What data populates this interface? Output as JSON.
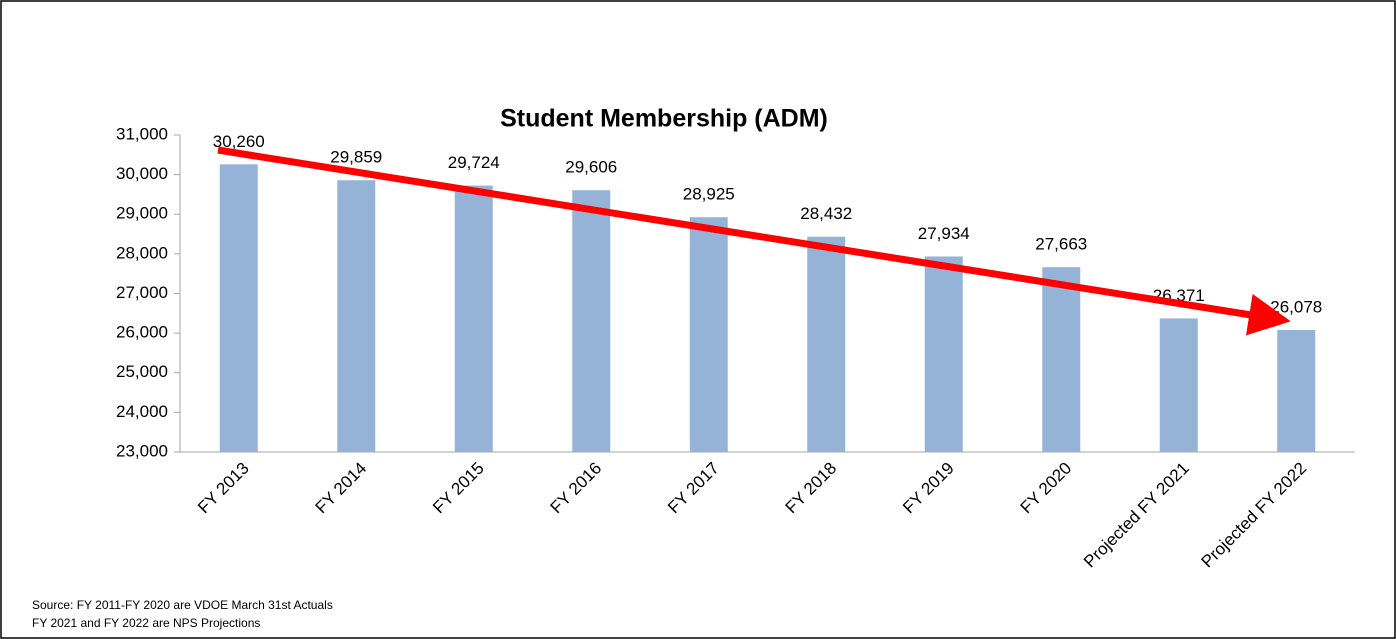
{
  "chart_data": {
    "type": "bar",
    "title": "Student Membership (ADM)",
    "categories": [
      "FY 2013",
      "FY 2014",
      "FY 2015",
      "FY 2016",
      "FY 2017",
      "FY 2018",
      "FY 2019",
      "FY 2020",
      "Projected FY 2021",
      "Projected FY 2022"
    ],
    "values": [
      30260,
      29859,
      29724,
      29606,
      28925,
      28432,
      27934,
      27663,
      26371,
      26078
    ],
    "value_labels": [
      "30,260",
      "29,859",
      "29,724",
      "29,606",
      "28,925",
      "28,432",
      "27,934",
      "27,663",
      "26,371",
      "26,078"
    ],
    "color": "#95b3d7",
    "ylim": [
      23000,
      31000
    ],
    "yticks": [
      {
        "value": 23000,
        "label": "23,000"
      },
      {
        "value": 24000,
        "label": "24,000"
      },
      {
        "value": 25000,
        "label": "25,000"
      },
      {
        "value": 26000,
        "label": "26,000"
      },
      {
        "value": 27000,
        "label": "27,000"
      },
      {
        "value": 28000,
        "label": "28,000"
      },
      {
        "value": 29000,
        "label": "29,000"
      },
      {
        "value": 30000,
        "label": "30,000"
      },
      {
        "value": 31000,
        "label": "31,000"
      }
    ],
    "grid": false,
    "notes": [
      "Source: FY 2011-FY 2020 are VDOE March 31st Actuals",
      "FY 2021 and FY 2022 are NPS Projections"
    ]
  }
}
